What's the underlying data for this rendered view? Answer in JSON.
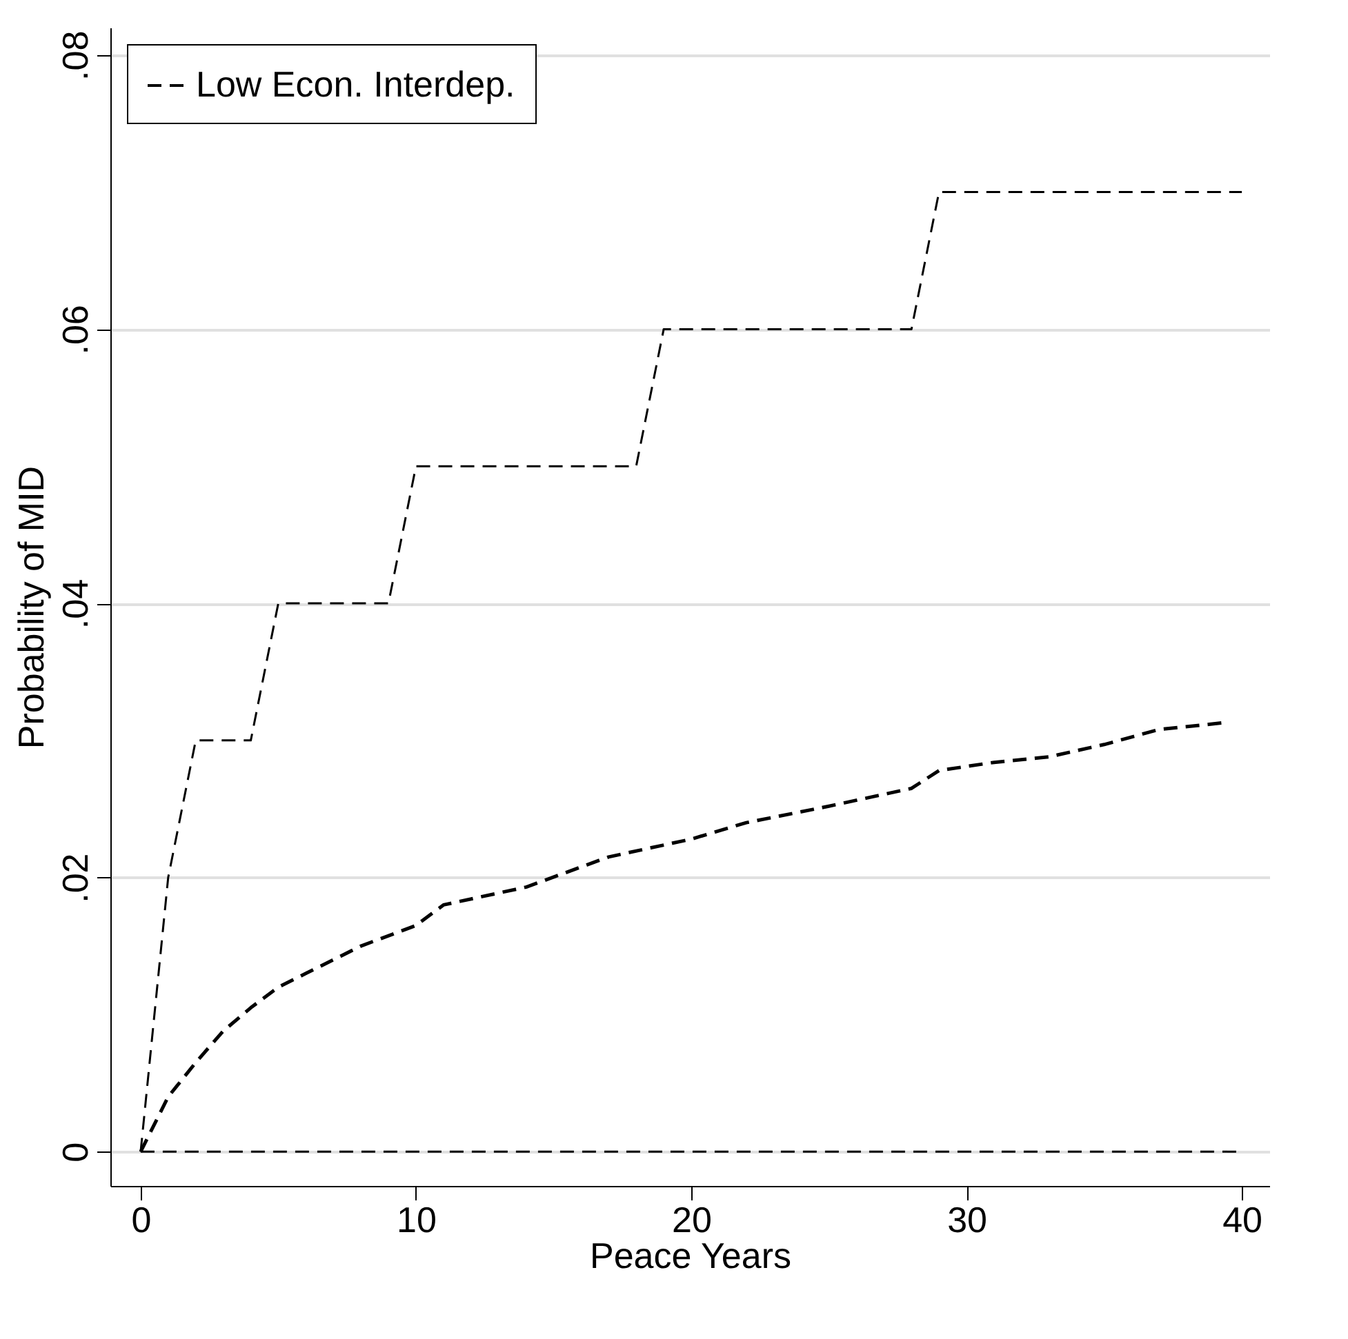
{
  "chart_data": {
    "type": "line",
    "xlabel": "Peace Years",
    "ylabel": "Probability of MID",
    "xlim": [
      -1.1,
      41
    ],
    "xticks": [
      0,
      10,
      20,
      30,
      40
    ],
    "ylim": [
      -0.0025,
      0.082
    ],
    "yticks": [
      {
        "value": 0,
        "label": "0"
      },
      {
        "value": 0.02,
        "label": ".02"
      },
      {
        "value": 0.04,
        "label": ".04"
      },
      {
        "value": 0.06,
        "label": ".06"
      },
      {
        "value": 0.08,
        "label": ".08"
      }
    ],
    "grid": "y",
    "legend": "top left",
    "line_style": "dashed",
    "marker": "none",
    "series": [
      {
        "color": "#000000",
        "x": [
          0,
          1,
          2,
          4,
          5,
          9,
          10,
          18,
          19,
          28,
          29,
          40
        ],
        "values": [
          0,
          0.02,
          0.03,
          0.03,
          0.04,
          0.04,
          0.05,
          0.05,
          0.06,
          0.06,
          0.07,
          0.07
        ]
      },
      {
        "name": "Low Econ. Interdep.",
        "color": "#000000",
        "x": [
          0,
          1,
          2,
          3,
          4,
          5,
          6,
          8,
          10,
          11,
          14,
          17,
          20,
          22,
          25,
          28,
          29,
          31,
          33,
          35,
          37,
          39.4
        ],
        "values": [
          0,
          0.004,
          0.0065,
          0.0088,
          0.0105,
          0.012,
          0.013,
          0.015,
          0.0165,
          0.018,
          0.0193,
          0.0215,
          0.0228,
          0.024,
          0.0252,
          0.0265,
          0.0278,
          0.0284,
          0.0288,
          0.0297,
          0.0308,
          0.0313
        ]
      },
      {
        "color": "#000000",
        "x": [
          0,
          40
        ],
        "values": [
          0,
          0
        ]
      }
    ]
  }
}
